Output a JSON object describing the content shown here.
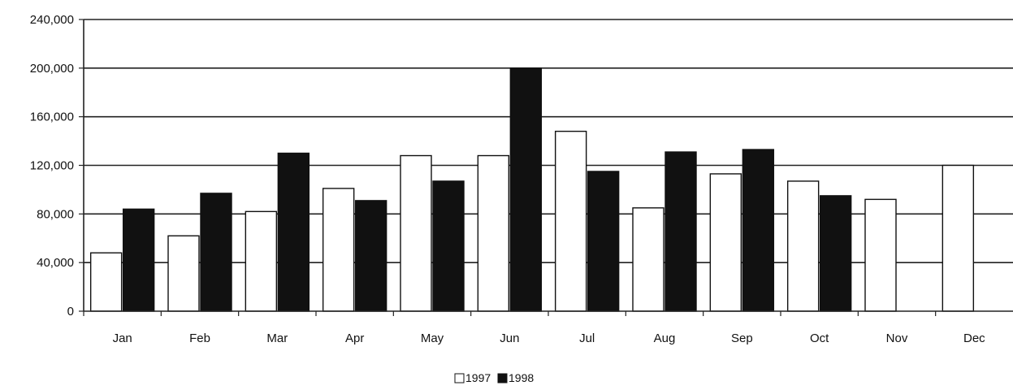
{
  "chart_data": {
    "type": "bar",
    "title": "",
    "xlabel": "",
    "ylabel": "",
    "categories": [
      "Jan",
      "Feb",
      "Mar",
      "Apr",
      "May",
      "Jun",
      "Jul",
      "Aug",
      "Sep",
      "Oct",
      "Nov",
      "Dec"
    ],
    "series": [
      {
        "name": "1997",
        "color": "#ffffff",
        "values": [
          48000,
          62000,
          82000,
          101000,
          128000,
          128000,
          148000,
          85000,
          113000,
          107000,
          92000,
          120000
        ]
      },
      {
        "name": "1998",
        "color": "#111111",
        "values": [
          84000,
          97000,
          130000,
          91000,
          107000,
          200000,
          115000,
          131000,
          133000,
          95000,
          null,
          null
        ]
      }
    ],
    "ylim": [
      0,
      240000
    ],
    "yticks": [
      "0",
      "40,000",
      "80,000",
      "120,000",
      "160,000",
      "200,000",
      "240,000"
    ],
    "grid": true,
    "legend_position": "bottom-center"
  }
}
